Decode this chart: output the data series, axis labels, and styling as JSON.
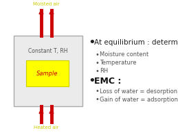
{
  "bg_color": "#ffffff",
  "box_facecolor": "#ebebeb",
  "box_edgecolor": "#aaaaaa",
  "sample_color": "#ffff00",
  "sample_border": "#cccc00",
  "arrow_color": "#cc0000",
  "moist_air_label": "Moisted air",
  "label_color": "#cccc00",
  "heated_air_label": "Heated air",
  "constant_label": "Constant T, RH",
  "sample_label": "Sample",
  "sample_label_color": "#cc0000",
  "bullet1_main": "At equilibrium : determine",
  "bullet1_sub": [
    "Moisture content",
    "Temperature",
    "RH"
  ],
  "bullet2_main": "EMC :",
  "bullet2_sub": [
    "Loss of water = desorption",
    "Gain of water = adsorption"
  ],
  "text_color": "#555555",
  "emc_color": "#111111",
  "main_bullet_color": "#222222"
}
